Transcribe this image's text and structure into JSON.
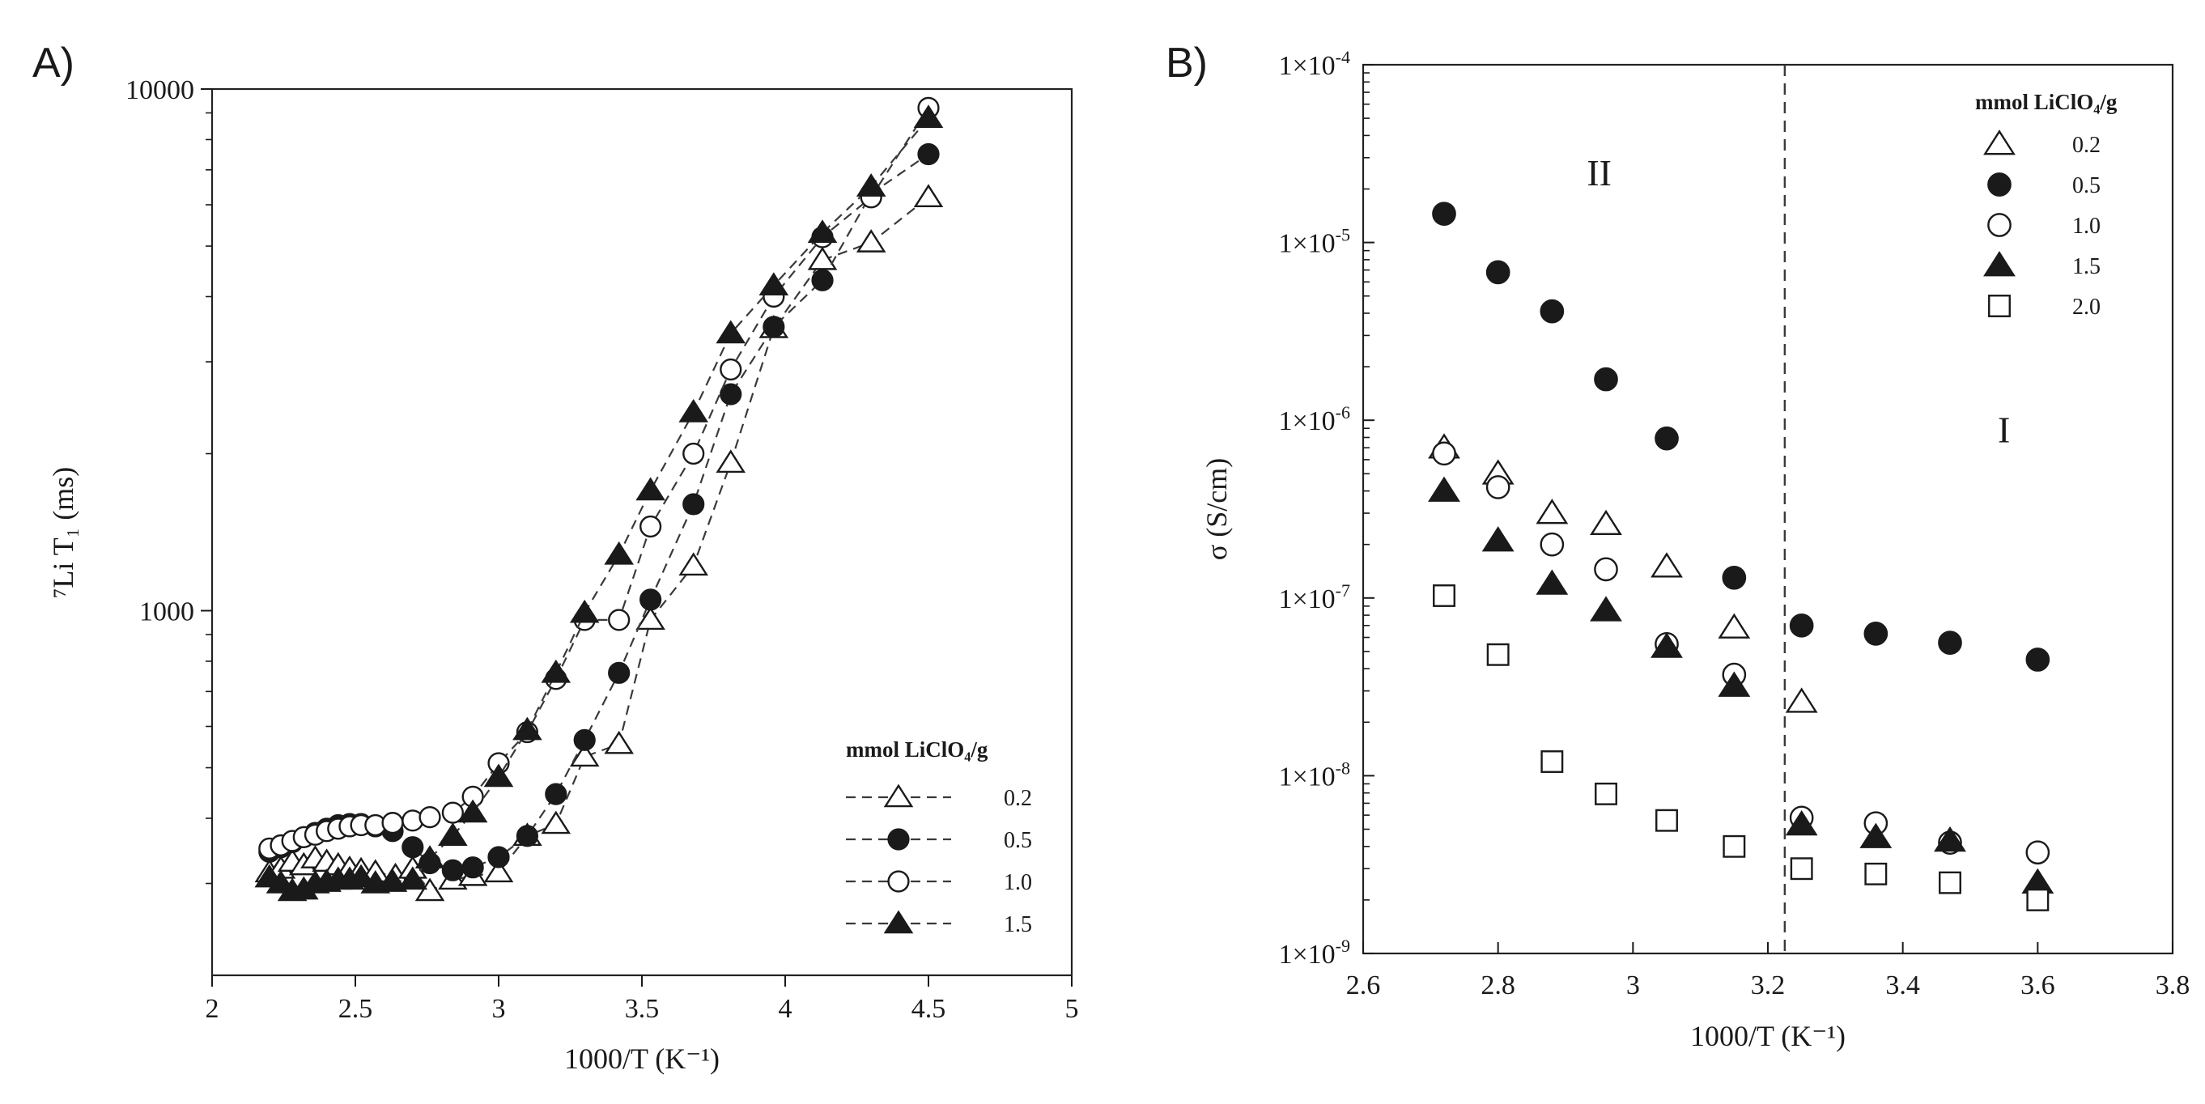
{
  "colors": {
    "ink": "#1a1a1a",
    "frame": "#222222",
    "dash": "#3a3a3a",
    "background": "#ffffff"
  },
  "chart_data": [
    {
      "type": "line",
      "panel_label": "A)",
      "xlabel": "1000/T (K⁻¹)",
      "ylabel": "⁷Li T₁ (ms)",
      "xlim": [
        2,
        5
      ],
      "ylim": [
        200,
        10000
      ],
      "yscale": "log",
      "xticks": [
        2,
        2.5,
        3,
        3.5,
        4,
        4.5,
        5
      ],
      "xtick_labels": [
        "2",
        "2.5",
        "3",
        "3.5",
        "4",
        "4.5",
        "5"
      ],
      "yticks": [
        1000,
        10000
      ],
      "ytick_labels": [
        "1000",
        "10000"
      ],
      "grid": false,
      "legend_position": "bottom-right",
      "legend_title": "mmol LiClO₄/g",
      "series": [
        {
          "name": "0.2",
          "marker": "triangle-open",
          "line": "dashed",
          "x": [
            2.2,
            2.24,
            2.28,
            2.32,
            2.36,
            2.4,
            2.44,
            2.48,
            2.52,
            2.57,
            2.64,
            2.7,
            2.76,
            2.84,
            2.91,
            3.0,
            3.1,
            3.2,
            3.3,
            3.42,
            3.53,
            3.68,
            3.81,
            3.96,
            4.13,
            4.3,
            4.5
          ],
          "y": [
            315,
            320,
            330,
            325,
            335,
            330,
            325,
            320,
            318,
            315,
            310,
            320,
            290,
            305,
            310,
            315,
            370,
            390,
            525,
            555,
            960,
            1220,
            1920,
            3480,
            4700,
            5080,
            6200
          ]
        },
        {
          "name": "0.5",
          "marker": "circle-filled",
          "line": "dashed",
          "x": [
            2.2,
            2.24,
            2.28,
            2.32,
            2.36,
            2.4,
            2.44,
            2.48,
            2.52,
            2.57,
            2.63,
            2.7,
            2.76,
            2.84,
            2.91,
            3.0,
            3.1,
            3.2,
            3.3,
            3.42,
            3.53,
            3.68,
            3.81,
            3.96,
            4.13,
            4.3,
            4.5
          ],
          "y": [
            345,
            352,
            360,
            368,
            375,
            382,
            388,
            390,
            390,
            386,
            378,
            352,
            328,
            318,
            322,
            337,
            370,
            445,
            565,
            760,
            1050,
            1600,
            2600,
            3500,
            4300,
            6300,
            7500
          ]
        },
        {
          "name": "1.0",
          "marker": "circle-open",
          "line": "dashed",
          "x": [
            2.2,
            2.24,
            2.28,
            2.32,
            2.36,
            2.4,
            2.44,
            2.48,
            2.52,
            2.57,
            2.63,
            2.7,
            2.76,
            2.84,
            2.91,
            3.0,
            3.1,
            3.2,
            3.3,
            3.42,
            3.53,
            3.68,
            3.81,
            3.96,
            4.13,
            4.3,
            4.5
          ],
          "y": [
            350,
            355,
            362,
            368,
            372,
            378,
            382,
            386,
            388,
            388,
            392,
            396,
            402,
            410,
            440,
            510,
            585,
            740,
            960,
            960,
            1450,
            2000,
            2900,
            4000,
            5200,
            6200,
            9200
          ]
        },
        {
          "name": "1.5",
          "marker": "triangle-filled",
          "line": "dashed",
          "x": [
            2.2,
            2.24,
            2.28,
            2.32,
            2.36,
            2.4,
            2.44,
            2.48,
            2.52,
            2.57,
            2.63,
            2.7,
            2.76,
            2.84,
            2.91,
            3.0,
            3.1,
            3.2,
            3.3,
            3.42,
            3.53,
            3.68,
            3.81,
            3.96,
            4.13,
            4.3,
            4.5
          ],
          "y": [
            308,
            300,
            290,
            292,
            300,
            302,
            305,
            305,
            308,
            300,
            302,
            305,
            335,
            370,
            410,
            480,
            590,
            760,
            990,
            1280,
            1700,
            2400,
            3400,
            4200,
            5300,
            6500,
            8800
          ]
        }
      ]
    },
    {
      "type": "scatter",
      "panel_label": "B)",
      "xlabel": "1000/T (K⁻¹)",
      "ylabel": "σ (S/cm)",
      "xlim": [
        2.6,
        3.8
      ],
      "ylim": [
        1e-09,
        0.0001
      ],
      "yscale": "log",
      "xticks": [
        2.6,
        2.8,
        3.0,
        3.2,
        3.4,
        3.6,
        3.8
      ],
      "xtick_labels": [
        "2.6",
        "2.8",
        "3",
        "3.2",
        "3.4",
        "3.6",
        "3.8"
      ],
      "yticks": [
        1e-09,
        1e-08,
        1e-07,
        1e-06,
        1e-05,
        0.0001
      ],
      "ytick_labels": [
        {
          "base": "1×10",
          "exp": "-9"
        },
        {
          "base": "1×10",
          "exp": "-8"
        },
        {
          "base": "1×10",
          "exp": "-7"
        },
        {
          "base": "1×10",
          "exp": "-6"
        },
        {
          "base": "1×10",
          "exp": "-5"
        },
        {
          "base": "1×10",
          "exp": "-4"
        }
      ],
      "grid": false,
      "vline_x": 3.225,
      "annotations": [
        {
          "text": "II",
          "x": 2.95,
          "y": 2.1e-05
        },
        {
          "text": "I",
          "x": 3.55,
          "y": 7.5e-07
        }
      ],
      "legend_position": "top-right",
      "legend_title": "mmol LiClO₄/g",
      "series": [
        {
          "name": "0.2",
          "marker": "triangle-open",
          "x": [
            2.72,
            2.8,
            2.88,
            2.96,
            3.05,
            3.15,
            3.25
          ],
          "y": [
            7e-07,
            5e-07,
            3e-07,
            2.6e-07,
            1.5e-07,
            6.8e-08,
            2.6e-08
          ]
        },
        {
          "name": "0.5",
          "marker": "circle-filled",
          "x": [
            2.72,
            2.8,
            2.88,
            2.96,
            3.05,
            3.15,
            3.25,
            3.36,
            3.47,
            3.6
          ],
          "y": [
            1.45e-05,
            6.8e-06,
            4.1e-06,
            1.7e-06,
            7.9e-07,
            1.3e-07,
            7e-08,
            6.3e-08,
            5.6e-08,
            4.5e-08
          ]
        },
        {
          "name": "1.0",
          "marker": "circle-open",
          "x": [
            2.72,
            2.8,
            2.88,
            2.96,
            3.05,
            3.15,
            3.25,
            3.36,
            3.47,
            3.6
          ],
          "y": [
            6.5e-07,
            4.2e-07,
            2e-07,
            1.45e-07,
            5.5e-08,
            3.7e-08,
            5.8e-09,
            5.4e-09,
            4.2e-09,
            3.7e-09
          ]
        },
        {
          "name": "1.5",
          "marker": "triangle-filled",
          "x": [
            2.72,
            2.8,
            2.88,
            2.96,
            3.05,
            3.15,
            3.25,
            3.36,
            3.47,
            3.6
          ],
          "y": [
            4e-07,
            2.1e-07,
            1.2e-07,
            8.5e-08,
            5.3e-08,
            3.2e-08,
            5.3e-09,
            4.5e-09,
            4.3e-09,
            2.5e-09
          ]
        },
        {
          "name": "2.0",
          "marker": "square-open",
          "x": [
            2.72,
            2.8,
            2.88,
            2.96,
            3.05,
            3.15,
            3.25,
            3.36,
            3.47,
            3.6
          ],
          "y": [
            1.03e-07,
            4.8e-08,
            1.2e-08,
            7.9e-09,
            5.6e-09,
            4e-09,
            3e-09,
            2.8e-09,
            2.5e-09,
            2e-09
          ]
        }
      ]
    }
  ]
}
